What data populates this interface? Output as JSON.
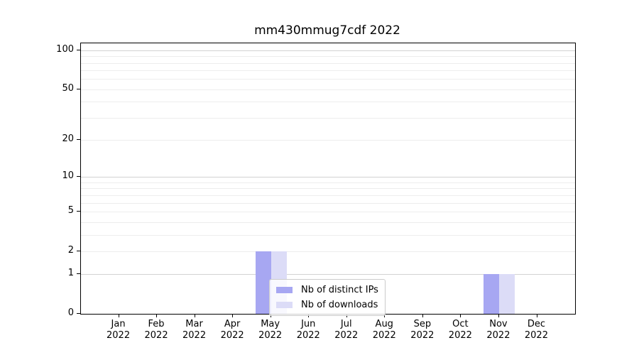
{
  "chart_data": {
    "type": "bar",
    "title": "mm430mmug7cdf 2022",
    "xlabel": "",
    "ylabel": "",
    "categories": [
      "Jan 2022",
      "Feb 2022",
      "Mar 2022",
      "Apr 2022",
      "May 2022",
      "Jun 2022",
      "Jul 2022",
      "Aug 2022",
      "Sep 2022",
      "Oct 2022",
      "Nov 2022",
      "Dec 2022"
    ],
    "series": [
      {
        "name": "Nb of distinct IPs",
        "color": "#a7a7f2",
        "values": [
          0,
          0,
          0,
          0,
          2,
          0,
          0,
          0,
          0,
          0,
          1,
          0
        ]
      },
      {
        "name": "Nb of downloads",
        "color": "#dcdcf7",
        "values": [
          0,
          0,
          0,
          0,
          2,
          0,
          0,
          0,
          0,
          0,
          1,
          0
        ]
      }
    ],
    "yticks": [
      0,
      1,
      2,
      5,
      10,
      20,
      50,
      100
    ],
    "ylim": [
      0,
      113
    ],
    "scale": "log1p",
    "grid": {
      "major_values": [
        1,
        10,
        100
      ],
      "minor_values": [
        2,
        3,
        4,
        5,
        6,
        7,
        8,
        9,
        20,
        30,
        40,
        50,
        60,
        70,
        80,
        90
      ],
      "major_color": "#d2d2d2",
      "minor_color": "#ededed"
    },
    "legend_position": "inside-lower-center",
    "spine_color": "#000000",
    "background_color": "#ffffff"
  }
}
